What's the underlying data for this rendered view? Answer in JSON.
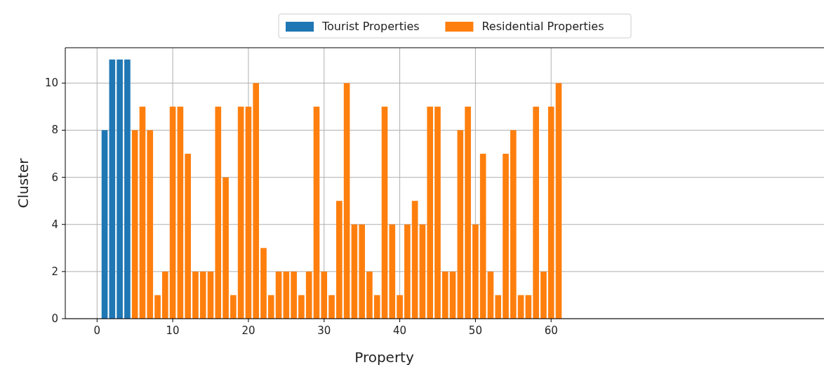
{
  "chart_data": {
    "type": "bar",
    "xlabel": "Property",
    "ylabel": "Cluster",
    "xlim": [
      -4.2,
      96.8
    ],
    "xticks": [
      0,
      10,
      20,
      30,
      40,
      50,
      60
    ],
    "ylim": [
      0,
      11.5
    ],
    "yticks": [
      0,
      2,
      4,
      6,
      8,
      10
    ],
    "grid": true,
    "legend": "top",
    "series": [
      {
        "name": "Tourist Properties",
        "color": "#1f77b4",
        "x": [
          1,
          2,
          3,
          4
        ],
        "values": [
          8,
          11,
          11,
          11
        ]
      },
      {
        "name": "Residential Properties",
        "color": "#ff7f0e",
        "x": [
          5,
          6,
          7,
          8,
          9,
          10,
          11,
          12,
          13,
          14,
          15,
          16,
          17,
          18,
          19,
          20,
          21,
          22,
          23,
          24,
          25,
          26,
          27,
          28,
          29,
          30,
          31,
          32,
          33,
          34,
          35,
          36,
          37,
          38,
          39,
          40,
          41,
          42,
          43,
          44,
          45,
          46,
          47,
          48,
          49,
          50,
          51,
          52,
          53,
          54,
          55,
          56,
          57,
          58,
          59,
          60,
          61
        ],
        "values": [
          8,
          9,
          8,
          1,
          2,
          9,
          9,
          7,
          2,
          2,
          2,
          9,
          6,
          1,
          9,
          9,
          10,
          3,
          1,
          2,
          2,
          2,
          1,
          2,
          9,
          2,
          1,
          5,
          10,
          4,
          4,
          2,
          1,
          9,
          4,
          1,
          4,
          5,
          4,
          9,
          9,
          2,
          2,
          8,
          9,
          4,
          7,
          2,
          1,
          7,
          8,
          1,
          1,
          9,
          2,
          9,
          10
        ]
      }
    ]
  }
}
